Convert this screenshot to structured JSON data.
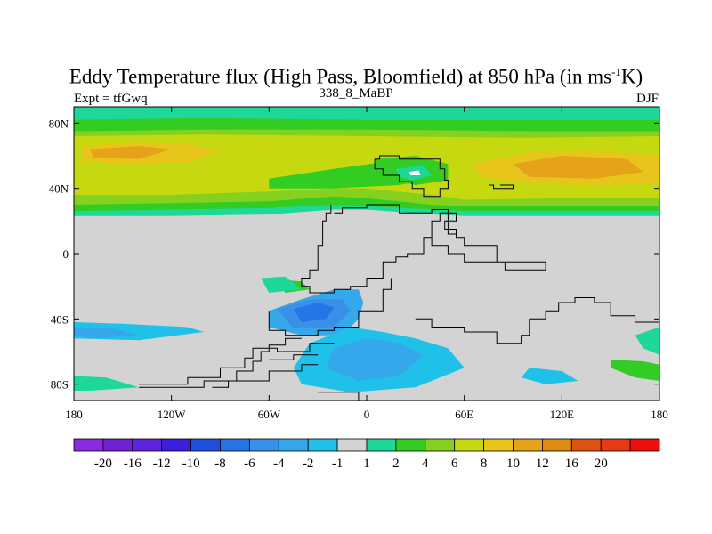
{
  "title": {
    "prefix": "Eddy Temperature flux (High Pass, Bloomfield) at 850 hPa (in ms",
    "sup": "-1",
    "suffix": "K)"
  },
  "subtitle_left": "Expt = tfGwq",
  "subtitle_center": "338_8_MaBP",
  "subtitle_right": "DJF",
  "map": {
    "projection": "cylindrical-equidistant",
    "lon_range": [
      -180,
      180
    ],
    "lat_range": [
      -90,
      90
    ],
    "lon_ticks": [
      {
        "lon": -180,
        "label": "180"
      },
      {
        "lon": -120,
        "label": "120W"
      },
      {
        "lon": -60,
        "label": "60W"
      },
      {
        "lon": 0,
        "label": "0"
      },
      {
        "lon": 60,
        "label": "60E"
      },
      {
        "lon": 120,
        "label": "120E"
      },
      {
        "lon": 180,
        "label": "180"
      }
    ],
    "lat_ticks": [
      {
        "lat": 80,
        "label": "80N"
      },
      {
        "lat": 40,
        "label": "40N"
      },
      {
        "lat": 0,
        "label": "0"
      },
      {
        "lat": -40,
        "label": "40S"
      },
      {
        "lat": -80,
        "label": "80S"
      }
    ],
    "missing_color": "#d3d3d3"
  },
  "colorbar": {
    "colors": [
      "#8a2be2",
      "#7021d6",
      "#5e23dd",
      "#3a1fe0",
      "#1e4fdd",
      "#2575e6",
      "#3a90e8",
      "#35a8eb",
      "#20c1e8",
      "#d3d3d3",
      "#1ed89a",
      "#33cc22",
      "#86d11f",
      "#c6d80f",
      "#e8c51a",
      "#e6a21a",
      "#e08a14",
      "#e05210",
      "#e83a14",
      "#ef0e0e"
    ],
    "labels": [
      "-20",
      "-16",
      "-12",
      "-10",
      "-8",
      "-6",
      "-4",
      "-2",
      "-1",
      "1",
      "2",
      "4",
      "6",
      "8",
      "10",
      "12",
      "16",
      "20"
    ]
  }
}
